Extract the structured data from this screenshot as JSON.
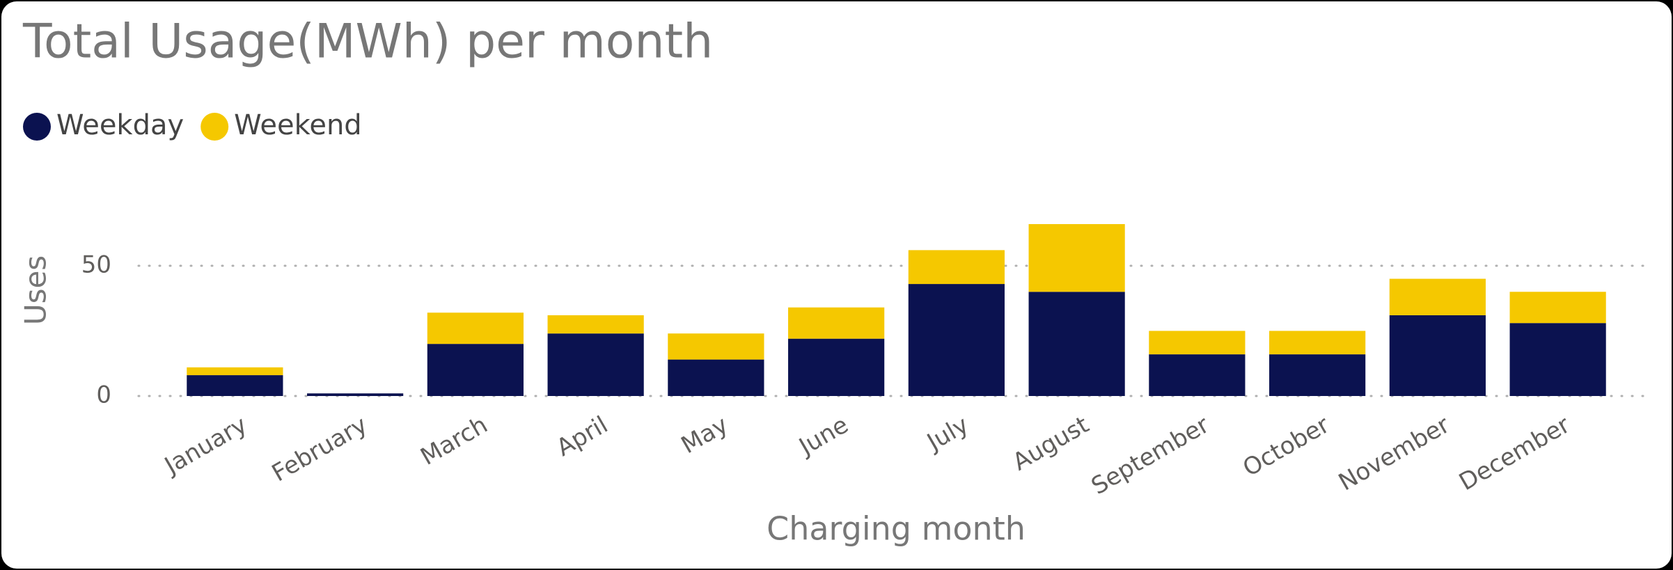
{
  "chart_data": {
    "type": "stacked_bar",
    "title": "Total Usage(MWh) per month",
    "x_label": "Charging month",
    "y_label": "Uses",
    "categories": [
      "January",
      "February",
      "March",
      "April",
      "May",
      "June",
      "July",
      "August",
      "September",
      "October",
      "November",
      "December"
    ],
    "series": [
      {
        "name": "Weekday",
        "color": "#0b1250",
        "values": [
          8,
          1,
          20,
          24,
          14,
          22,
          43,
          40,
          16,
          16,
          31,
          28
        ]
      },
      {
        "name": "Weekend",
        "color": "#f5c800",
        "values": [
          3,
          0,
          12,
          7,
          10,
          12,
          13,
          26,
          9,
          9,
          14,
          12
        ]
      }
    ],
    "ylim": [
      0,
      70
    ],
    "yticks": [
      0,
      50
    ],
    "grid": true,
    "legend": "top-left"
  }
}
